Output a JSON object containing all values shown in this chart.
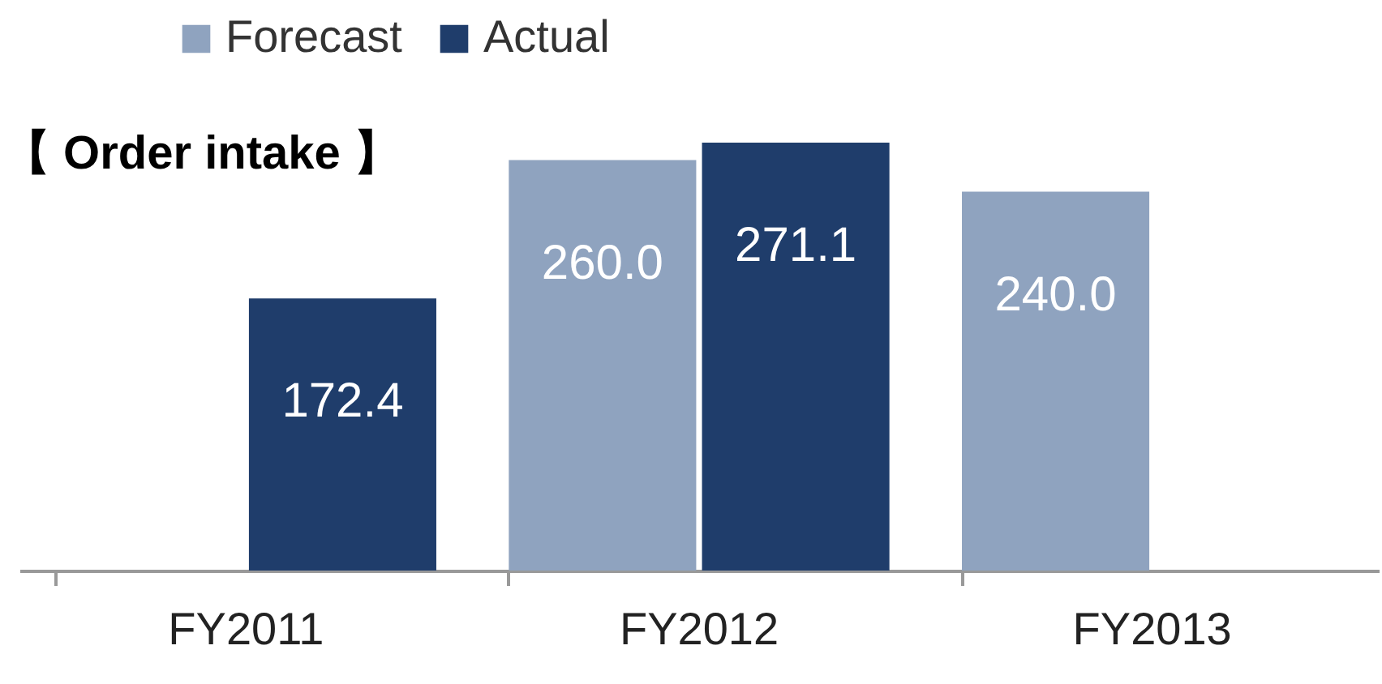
{
  "chart_data": {
    "type": "bar",
    "title": "【 Order intake 】",
    "categories": [
      "FY2011",
      "FY2012",
      "FY2013"
    ],
    "series": [
      {
        "name": "Forecast",
        "color": "#8fa3bf",
        "values": [
          null,
          260.0,
          240.0
        ],
        "value_labels": [
          null,
          "260.0",
          "240.0"
        ]
      },
      {
        "name": "Actual",
        "color": "#1f3d6b",
        "values": [
          172.4,
          271.1,
          null
        ],
        "value_labels": [
          "172.4",
          "271.1",
          null
        ]
      }
    ],
    "legend": "top left",
    "grid": false
  }
}
